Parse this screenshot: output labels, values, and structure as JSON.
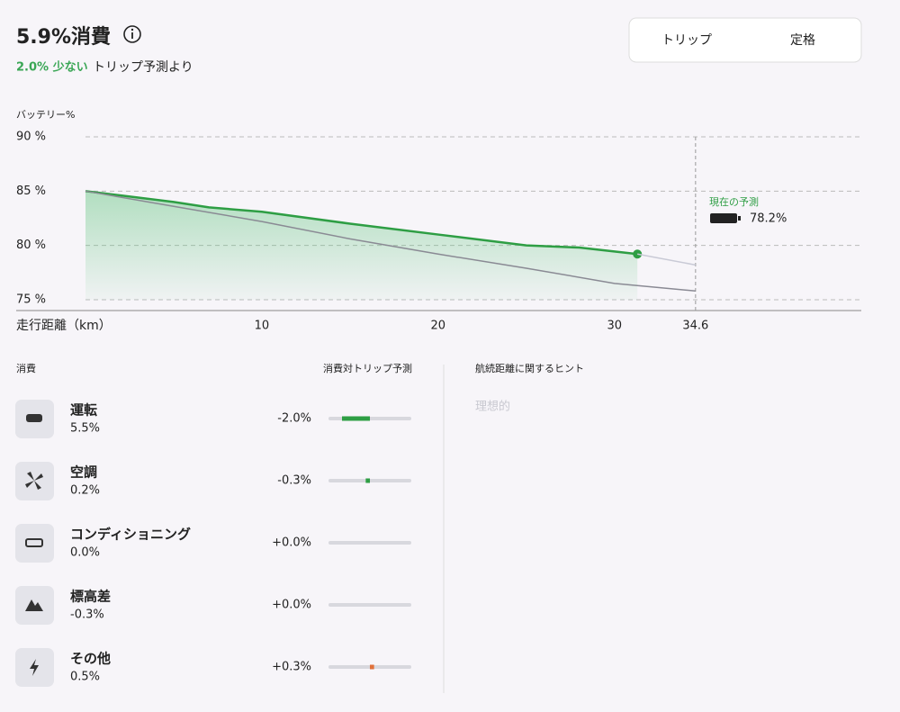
{
  "header": {
    "title": "5.9%消費",
    "saving": "2.0% 少ない",
    "saving_suffix": "トリップ予測より",
    "tabs": [
      "トリップ",
      "定格"
    ]
  },
  "chart_data": {
    "type": "line",
    "ylabel": "バッテリー%",
    "xlabel": "走行距離（km）",
    "xlim": [
      0,
      44
    ],
    "ylim": [
      74,
      90
    ],
    "xticks": [
      10,
      20,
      30,
      34.6
    ],
    "yticks": [
      {
        "value": 75,
        "label": "75 %"
      },
      {
        "value": 80,
        "label": "80 %"
      },
      {
        "value": 85,
        "label": "85 %"
      },
      {
        "value": 90,
        "label": "90 %"
      }
    ],
    "grid": true,
    "series": [
      {
        "color": "#2e9e44",
        "x": [
          0,
          2,
          5,
          7,
          10,
          15,
          20,
          25,
          28,
          31.3
        ],
        "values": [
          85,
          84.6,
          84.0,
          83.5,
          83.1,
          82.0,
          81.0,
          80.0,
          79.8,
          79.2
        ]
      },
      {
        "color": "#c9cad6",
        "x": [
          31.3,
          34.6
        ],
        "values": [
          79.2,
          78.2
        ]
      },
      {
        "color": "#8a8a94",
        "x": [
          0,
          5,
          10,
          15,
          20,
          25,
          30,
          34.6
        ],
        "values": [
          85,
          83.6,
          82.2,
          80.6,
          79.2,
          77.9,
          76.5,
          75.8
        ]
      }
    ],
    "annotation": {
      "title": "現在の予測",
      "label": "78.2%"
    }
  },
  "breakdown": {
    "title": "消費",
    "column": "消費対トリップ予測",
    "rows": [
      {
        "name": "運転",
        "share": "5.5%",
        "delta": {
          "value": -2.0,
          "label": "-2.0%"
        }
      },
      {
        "name": "空調",
        "share": "0.2%",
        "delta": {
          "value": -0.3,
          "label": "-0.3%"
        }
      },
      {
        "name": "コンディショニング",
        "share": "0.0%",
        "delta": {
          "value": 0.0,
          "label": "+0.0%"
        }
      },
      {
        "name": "標高差",
        "share": "-0.3%",
        "delta": {
          "value": 0.0,
          "label": "+0.0%"
        }
      },
      {
        "name": "その他",
        "share": "0.5%",
        "delta": {
          "value": 0.3,
          "label": "+0.3%"
        }
      }
    ]
  },
  "tips": {
    "title": "航続距離に関するヒント",
    "items": [
      "理想的"
    ]
  }
}
